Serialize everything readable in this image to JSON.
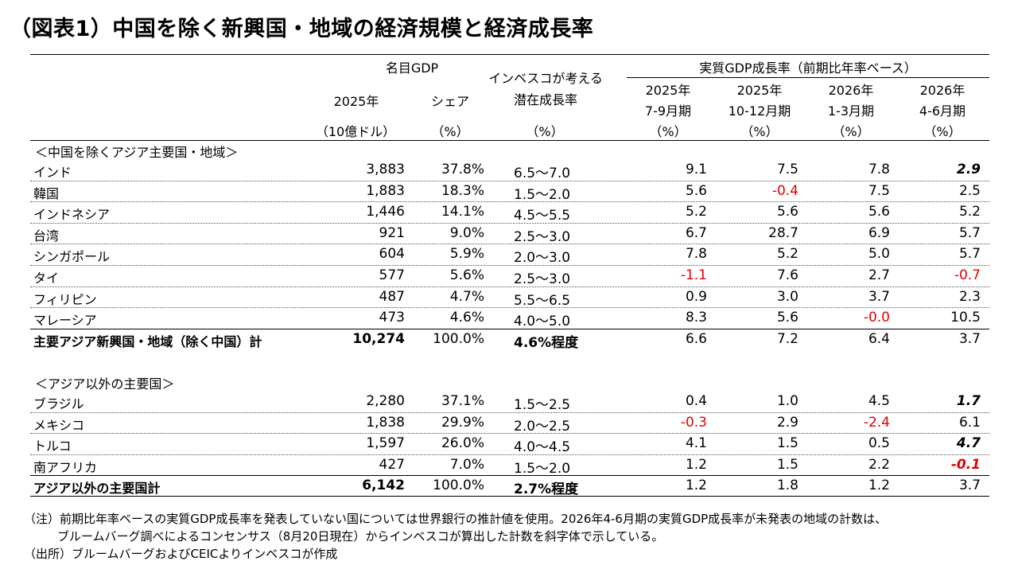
{
  "title": "（図表1）中国を除く新興国・地域の経済規模と経済成長率",
  "header": {
    "nominal_gdp": "名目GDP",
    "year": "2025年",
    "share": "シェア",
    "unit_gdp": "（10億ドル）",
    "unit_pct": "（%）",
    "potential_l1": "インベスコが考える",
    "potential_l2": "潜在成長率",
    "real_growth": "実質GDP成長率（前期比年率ベース）",
    "quarters": [
      {
        "year": "2025年",
        "period": "7-9月期",
        "unit": "（%）"
      },
      {
        "year": "2025年",
        "period": "10-12月期",
        "unit": "（%）"
      },
      {
        "year": "2026年",
        "period": "1-3月期",
        "unit": "（%）"
      },
      {
        "year": "2026年",
        "period": "4-6月期",
        "unit": "（%）"
      }
    ]
  },
  "section1": {
    "label": "＜中国を除くアジア主要国・地域＞",
    "rows": [
      {
        "name": "インド",
        "gdp": "3,883",
        "share": "37.8%",
        "potential": "6.5～7.0",
        "q": [
          "9.1",
          "7.5",
          "7.8",
          "2.9"
        ]
      },
      {
        "name": "韓国",
        "gdp": "1,883",
        "share": "18.3%",
        "potential": "1.5～2.0",
        "q": [
          "5.6",
          "-0.4",
          "7.5",
          "2.5"
        ]
      },
      {
        "name": "インドネシア",
        "gdp": "1,446",
        "share": "14.1%",
        "potential": "4.5～5.5",
        "q": [
          "5.2",
          "5.6",
          "5.6",
          "5.2"
        ]
      },
      {
        "name": "台湾",
        "gdp": "921",
        "share": "9.0%",
        "potential": "2.5～3.0",
        "q": [
          "6.7",
          "28.7",
          "6.9",
          "5.7"
        ]
      },
      {
        "name": "シンガポール",
        "gdp": "604",
        "share": "5.9%",
        "potential": "2.0～3.0",
        "q": [
          "7.8",
          "5.2",
          "5.0",
          "5.7"
        ]
      },
      {
        "name": "タイ",
        "gdp": "577",
        "share": "5.6%",
        "potential": "2.5～3.0",
        "q": [
          "-1.1",
          "7.6",
          "2.7",
          "-0.7"
        ]
      },
      {
        "name": "フィリピン",
        "gdp": "487",
        "share": "4.7%",
        "potential": "5.5～6.5",
        "q": [
          "0.9",
          "3.0",
          "3.7",
          "2.3"
        ]
      },
      {
        "name": "マレーシア",
        "gdp": "473",
        "share": "4.6%",
        "potential": "4.0～5.0",
        "q": [
          "8.3",
          "5.6",
          "-0.0",
          "10.5"
        ]
      }
    ],
    "total": {
      "name": "主要アジア新興国・地域（除く中国）計",
      "gdp": "10,274",
      "share": "100.0%",
      "potential": "4.6%程度",
      "q": [
        "6.6",
        "7.2",
        "6.4",
        "3.7"
      ]
    }
  },
  "section2": {
    "label": "＜アジア以外の主要国＞",
    "rows": [
      {
        "name": "ブラジル",
        "gdp": "2,280",
        "share": "37.1%",
        "potential": "1.5～2.5",
        "q": [
          "0.4",
          "1.0",
          "4.5",
          "1.7"
        ]
      },
      {
        "name": "メキシコ",
        "gdp": "1,838",
        "share": "29.9%",
        "potential": "2.0～2.5",
        "q": [
          "-0.3",
          "2.9",
          "-2.4",
          "6.1"
        ]
      },
      {
        "name": "トルコ",
        "gdp": "1,597",
        "share": "26.0%",
        "potential": "4.0～4.5",
        "q": [
          "4.1",
          "1.5",
          "0.5",
          "4.7"
        ]
      },
      {
        "name": "南アフリカ",
        "gdp": "427",
        "share": "7.0%",
        "potential": "1.5～2.0",
        "q": [
          "1.2",
          "1.5",
          "2.2",
          "-0.1"
        ]
      }
    ],
    "total": {
      "name": "アジア以外の主要国計",
      "gdp": "6,142",
      "share": "100.0%",
      "potential": "2.7%程度",
      "q": [
        "1.2",
        "1.8",
        "1.2",
        "3.7"
      ]
    }
  },
  "notes": {
    "note_l1": "（注）前期比年率ベースの実質GDP成長率を発表していない国については世界銀行の推計値を使用。2026年4-6月期の実質GDP成長率が未発表の地域の計数は、",
    "note_l2": "ブルームバーグ調べによるコンセンサス（8月20日現在）からインベスコが算出した計数を斜字体で示している。",
    "source": "（出所）ブルームバーグおよびCEICよりインベスコが作成"
  },
  "colors": {
    "negative": "#e00000",
    "text": "#000000"
  }
}
